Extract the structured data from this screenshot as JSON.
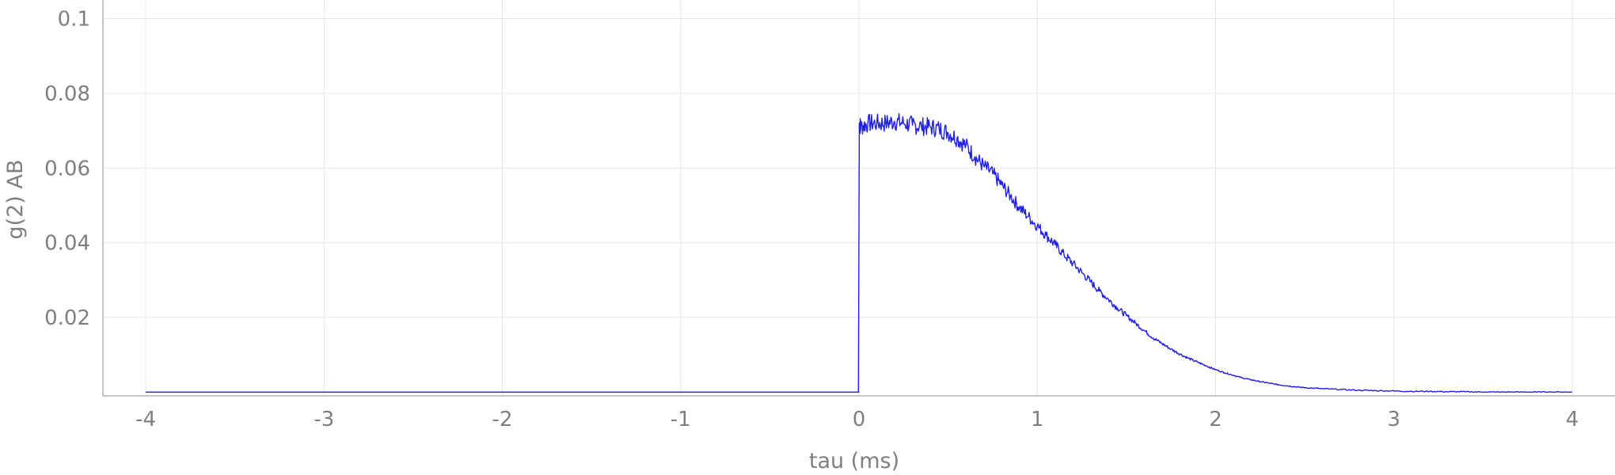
{
  "chart_data": {
    "type": "line",
    "title": "",
    "xlabel": "tau (ms)",
    "ylabel": "g(2) AB",
    "xlim": [
      -4.24,
      4.24
    ],
    "ylim": [
      -0.001,
      0.105
    ],
    "xticks": [
      -4,
      -3,
      -2,
      -1,
      0,
      1,
      2,
      3,
      4
    ],
    "xtick_labels": [
      "-4",
      "-3",
      "-2",
      "-1",
      "0",
      "1",
      "2",
      "3",
      "4"
    ],
    "yticks": [
      0.02,
      0.04,
      0.06,
      0.08,
      0.1
    ],
    "ytick_labels": [
      "0.02",
      "0.04",
      "0.06",
      "0.08",
      "0.1"
    ],
    "grid": true,
    "legend": "none",
    "series": [
      {
        "color": "#1f1fe8",
        "x": [
          -4.0,
          -2.0,
          0.0,
          -0.003,
          0.002,
          0.01,
          0.05,
          0.1,
          0.15,
          0.2,
          0.25,
          0.3,
          0.35,
          0.4,
          0.45,
          0.5,
          0.55,
          0.6,
          0.65,
          0.7,
          0.75,
          0.8,
          0.85,
          0.9,
          0.95,
          1.0,
          1.05,
          1.1,
          1.15,
          1.2,
          1.25,
          1.3,
          1.35,
          1.4,
          1.45,
          1.5,
          1.55,
          1.6,
          1.65,
          1.7,
          1.75,
          1.8,
          1.85,
          1.9,
          1.95,
          2.0,
          2.05,
          2.1,
          2.15,
          2.2,
          2.25,
          2.3,
          2.35,
          2.4,
          2.45,
          2.5,
          2.6,
          2.7,
          2.8,
          2.9,
          3.0,
          3.1,
          3.2,
          3.3,
          3.4,
          3.5,
          3.6,
          3.7,
          3.8,
          3.9,
          4.0
        ],
        "y": [
          0.0,
          0.0,
          0.0,
          0.0,
          0.072,
          0.071,
          0.072,
          0.072,
          0.072,
          0.0725,
          0.072,
          0.0715,
          0.0712,
          0.071,
          0.0705,
          0.0695,
          0.068,
          0.066,
          0.063,
          0.0605,
          0.0585,
          0.0555,
          0.0525,
          0.0495,
          0.047,
          0.0445,
          0.042,
          0.0395,
          0.0368,
          0.0345,
          0.032,
          0.0295,
          0.027,
          0.0248,
          0.0225,
          0.0205,
          0.0185,
          0.0165,
          0.0145,
          0.013,
          0.0115,
          0.0102,
          0.009,
          0.008,
          0.007,
          0.006,
          0.0052,
          0.0045,
          0.0038,
          0.0033,
          0.0028,
          0.0024,
          0.002,
          0.0017,
          0.0014,
          0.0012,
          0.0009,
          0.0007,
          0.0005,
          0.0004,
          0.0003,
          0.0002,
          0.0002,
          0.0001,
          0.0001,
          0.0,
          0.0,
          0.0,
          0.0,
          0.0,
          0.0
        ]
      }
    ]
  }
}
